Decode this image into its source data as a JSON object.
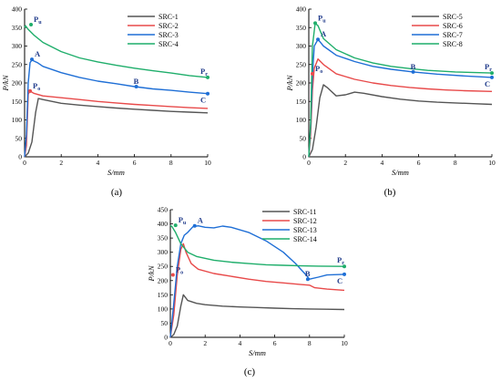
{
  "chart_data": [
    {
      "type": "line",
      "panel_label": "(a)",
      "xlabel": "S/mm",
      "ylabel": "P/kN",
      "xlim": [
        0,
        10
      ],
      "ylim": [
        0,
        400
      ],
      "xticks": [
        0,
        2,
        4,
        6,
        8,
        10
      ],
      "yticks": [
        0,
        50,
        100,
        150,
        200,
        250,
        300,
        350,
        400
      ],
      "legend": "top-right",
      "series": [
        {
          "name": "SRC-1",
          "color": "#555555",
          "points": [
            [
              0,
              0
            ],
            [
              0.2,
              10
            ],
            [
              0.4,
              40
            ],
            [
              0.6,
              120
            ],
            [
              0.75,
              158
            ],
            [
              1.0,
              155
            ],
            [
              2,
              145
            ],
            [
              3,
              140
            ],
            [
              4,
              136
            ],
            [
              5,
              132
            ],
            [
              6,
              129
            ],
            [
              7,
              126
            ],
            [
              8,
              123
            ],
            [
              9,
              121
            ],
            [
              10,
              119
            ]
          ]
        },
        {
          "name": "SRC-2",
          "color": "#e84a4a",
          "points": [
            [
              0,
              0
            ],
            [
              0.1,
              30
            ],
            [
              0.2,
              170
            ],
            [
              0.3,
              178
            ],
            [
              0.5,
              172
            ],
            [
              1,
              165
            ],
            [
              2,
              160
            ],
            [
              3,
              155
            ],
            [
              4,
              150
            ],
            [
              5,
              146
            ],
            [
              6,
              142
            ],
            [
              7,
              139
            ],
            [
              8,
              136
            ],
            [
              9,
              133
            ],
            [
              10,
              131
            ]
          ]
        },
        {
          "name": "SRC-3",
          "color": "#1f6fd6",
          "points": [
            [
              0,
              0
            ],
            [
              0.1,
              60
            ],
            [
              0.2,
              200
            ],
            [
              0.3,
              255
            ],
            [
              0.4,
              262
            ],
            [
              0.7,
              255
            ],
            [
              1,
              245
            ],
            [
              2,
              228
            ],
            [
              3,
              215
            ],
            [
              4,
              205
            ],
            [
              5,
              198
            ],
            [
              6,
              190
            ],
            [
              7,
              184
            ],
            [
              8,
              180
            ],
            [
              9,
              175
            ],
            [
              10,
              171
            ]
          ]
        },
        {
          "name": "SRC-4",
          "color": "#1fae6b",
          "points": [
            [
              0,
              350
            ],
            [
              0.05,
              355
            ],
            [
              0.2,
              345
            ],
            [
              0.5,
              330
            ],
            [
              1,
              310
            ],
            [
              2,
              285
            ],
            [
              3,
              268
            ],
            [
              4,
              257
            ],
            [
              5,
              248
            ],
            [
              6,
              240
            ],
            [
              7,
              233
            ],
            [
              8,
              227
            ],
            [
              9,
              220
            ],
            [
              10,
              215
            ]
          ]
        }
      ],
      "annotations": [
        {
          "text": "P",
          "sub": "u",
          "x": 0.35,
          "y": 358,
          "color": "#1fae6b"
        },
        {
          "text": "A",
          "x": 0.4,
          "y": 264,
          "color": "#1f6fd6"
        },
        {
          "text": "P",
          "sub": "o",
          "x": 0.3,
          "y": 178,
          "color": "#e84a4a"
        },
        {
          "text": "B",
          "x": 6.1,
          "y": 190,
          "color": "#1f6fd6"
        },
        {
          "text": "C",
          "x": 10.0,
          "y": 171,
          "color": "#1f6fd6"
        },
        {
          "text": "P",
          "sub": "r",
          "x": 10.0,
          "y": 215,
          "color": "#1fae6b"
        }
      ]
    },
    {
      "type": "line",
      "panel_label": "(b)",
      "xlabel": "S/mm",
      "ylabel": "P/kN",
      "xlim": [
        0,
        10
      ],
      "ylim": [
        0,
        400
      ],
      "xticks": [
        0,
        2,
        4,
        6,
        8,
        10
      ],
      "yticks": [
        0,
        50,
        100,
        150,
        200,
        250,
        300,
        350,
        400
      ],
      "legend": "top-right",
      "series": [
        {
          "name": "SRC-5",
          "color": "#555555",
          "points": [
            [
              0,
              0
            ],
            [
              0.2,
              20
            ],
            [
              0.4,
              80
            ],
            [
              0.6,
              160
            ],
            [
              0.8,
              195
            ],
            [
              1.0,
              188
            ],
            [
              1.5,
              165
            ],
            [
              2.0,
              168
            ],
            [
              2.5,
              175
            ],
            [
              3,
              172
            ],
            [
              4,
              163
            ],
            [
              5,
              156
            ],
            [
              6,
              151
            ],
            [
              7,
              148
            ],
            [
              8,
              146
            ],
            [
              9,
              144
            ],
            [
              10,
              142
            ]
          ]
        },
        {
          "name": "SRC-6",
          "color": "#e84a4a",
          "points": [
            [
              0,
              0
            ],
            [
              0.1,
              60
            ],
            [
              0.2,
              180
            ],
            [
              0.3,
              240
            ],
            [
              0.5,
              265
            ],
            [
              0.8,
              250
            ],
            [
              1.5,
              225
            ],
            [
              2.5,
              210
            ],
            [
              3.5,
              200
            ],
            [
              4.5,
              193
            ],
            [
              5.5,
              188
            ],
            [
              6.5,
              184
            ],
            [
              7.5,
              181
            ],
            [
              8.5,
              179
            ],
            [
              10,
              177
            ]
          ]
        },
        {
          "name": "SRC-7",
          "color": "#1f6fd6",
          "points": [
            [
              0,
              0
            ],
            [
              0.1,
              80
            ],
            [
              0.2,
              220
            ],
            [
              0.3,
              300
            ],
            [
              0.5,
              318
            ],
            [
              0.8,
              300
            ],
            [
              1.5,
              275
            ],
            [
              2.5,
              258
            ],
            [
              3.5,
              245
            ],
            [
              4.5,
              237
            ],
            [
              5.7,
              230
            ],
            [
              7,
              224
            ],
            [
              8.5,
              219
            ],
            [
              10,
              215
            ]
          ]
        },
        {
          "name": "SRC-8",
          "color": "#1fae6b",
          "points": [
            [
              0,
              0
            ],
            [
              0.1,
              90
            ],
            [
              0.2,
              300
            ],
            [
              0.35,
              362
            ],
            [
              0.5,
              355
            ],
            [
              0.8,
              320
            ],
            [
              1.5,
              290
            ],
            [
              2.5,
              268
            ],
            [
              3.5,
              254
            ],
            [
              4.5,
              245
            ],
            [
              5.5,
              239
            ],
            [
              6.5,
              234
            ],
            [
              8,
              230
            ],
            [
              10,
              227
            ]
          ]
        }
      ],
      "annotations": [
        {
          "text": "P",
          "sub": "u",
          "x": 0.35,
          "y": 362,
          "color": "#1fae6b"
        },
        {
          "text": "A",
          "x": 0.5,
          "y": 318,
          "color": "#1f6fd6"
        },
        {
          "text": "P",
          "sub": "o",
          "x": 0.2,
          "y": 225,
          "color": "#e84a4a"
        },
        {
          "text": "B",
          "x": 5.7,
          "y": 230,
          "color": "#1f6fd6"
        },
        {
          "text": "C",
          "x": 10.0,
          "y": 215,
          "color": "#1f6fd6"
        },
        {
          "text": "P",
          "sub": "r",
          "x": 10.0,
          "y": 227,
          "color": "#1fae6b"
        }
      ]
    },
    {
      "type": "line",
      "panel_label": "(c)",
      "xlabel": "S/mm",
      "ylabel": "P/kN",
      "xlim": [
        0,
        10
      ],
      "ylim": [
        0,
        450
      ],
      "xticks": [
        0,
        2,
        4,
        6,
        8,
        10
      ],
      "yticks": [
        0,
        50,
        100,
        150,
        200,
        250,
        300,
        350,
        400,
        450
      ],
      "legend": "top-right",
      "series": [
        {
          "name": "SRC-11",
          "color": "#555555",
          "points": [
            [
              0,
              0
            ],
            [
              0.2,
              10
            ],
            [
              0.4,
              40
            ],
            [
              0.6,
              110
            ],
            [
              0.75,
              150
            ],
            [
              1.0,
              130
            ],
            [
              1.5,
              120
            ],
            [
              2,
              115
            ],
            [
              3,
              110
            ],
            [
              4,
              107
            ],
            [
              5,
              105
            ],
            [
              6,
              103
            ],
            [
              7,
              101
            ],
            [
              8,
              100
            ],
            [
              9,
              99
            ],
            [
              10,
              98
            ]
          ]
        },
        {
          "name": "SRC-12",
          "color": "#e84a4a",
          "points": [
            [
              0,
              0
            ],
            [
              0.2,
              80
            ],
            [
              0.4,
              220
            ],
            [
              0.6,
              310
            ],
            [
              0.75,
              330
            ],
            [
              0.9,
              300
            ],
            [
              1.2,
              260
            ],
            [
              1.6,
              240
            ],
            [
              2.5,
              225
            ],
            [
              3.5,
              215
            ],
            [
              4.5,
              205
            ],
            [
              5.5,
              197
            ],
            [
              6.5,
              192
            ],
            [
              7.5,
              186
            ],
            [
              8.0,
              184
            ],
            [
              8.3,
              175
            ],
            [
              9,
              170
            ],
            [
              10,
              166
            ]
          ]
        },
        {
          "name": "SRC-13",
          "color": "#1f6fd6",
          "points": [
            [
              0,
              0
            ],
            [
              0.2,
              120
            ],
            [
              0.4,
              250
            ],
            [
              0.6,
              330
            ],
            [
              0.8,
              360
            ],
            [
              1.0,
              370
            ],
            [
              1.3,
              390
            ],
            [
              1.6,
              393
            ],
            [
              2.0,
              388
            ],
            [
              2.5,
              386
            ],
            [
              3.0,
              392
            ],
            [
              3.5,
              388
            ],
            [
              4.5,
              370
            ],
            [
              5.5,
              340
            ],
            [
              6.5,
              300
            ],
            [
              7.2,
              260
            ],
            [
              7.8,
              220
            ],
            [
              8.0,
              205
            ],
            [
              8.5,
              212
            ],
            [
              9,
              220
            ],
            [
              10,
              222
            ]
          ]
        },
        {
          "name": "SRC-14",
          "color": "#1fae6b",
          "points": [
            [
              0,
              395
            ],
            [
              0.1,
              390
            ],
            [
              0.3,
              370
            ],
            [
              0.6,
              330
            ],
            [
              1.0,
              300
            ],
            [
              1.5,
              285
            ],
            [
              2.5,
              272
            ],
            [
              3.5,
              265
            ],
            [
              4.5,
              260
            ],
            [
              5.5,
              256
            ],
            [
              6.5,
              254
            ],
            [
              7.5,
              252
            ],
            [
              8.5,
              251
            ],
            [
              10,
              250
            ]
          ]
        }
      ],
      "annotations": [
        {
          "text": "P",
          "sub": "u",
          "x": 0.3,
          "y": 395,
          "color": "#1fae6b"
        },
        {
          "text": "A",
          "x": 1.4,
          "y": 393,
          "color": "#1f6fd6"
        },
        {
          "text": "P",
          "sub": "o",
          "x": 0.15,
          "y": 220,
          "color": "#e84a4a"
        },
        {
          "text": "B",
          "x": 7.9,
          "y": 205,
          "color": "#1f6fd6"
        },
        {
          "text": "C",
          "x": 10.0,
          "y": 222,
          "color": "#1f6fd6"
        },
        {
          "text": "P",
          "sub": "r",
          "x": 10.0,
          "y": 250,
          "color": "#1fae6b"
        }
      ]
    }
  ]
}
